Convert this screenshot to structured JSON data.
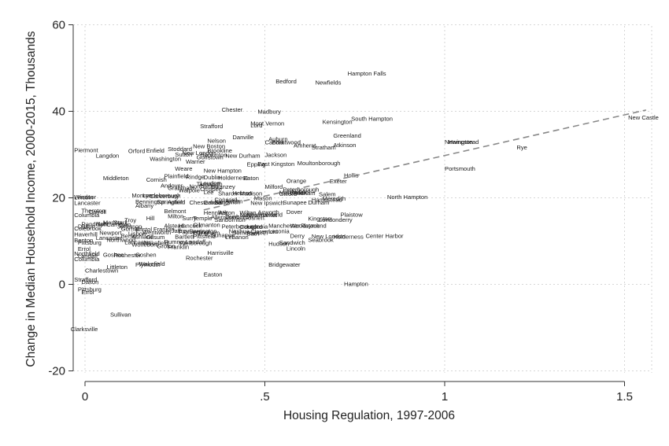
{
  "chart_data": {
    "type": "scatter",
    "title": "",
    "xlabel": "Housing Regulation, 1997-2006",
    "ylabel": "Change in Median Household Income, 2000-2015, Thousands",
    "xlim": [
      -0.03,
      1.58
    ],
    "ylim": [
      -21,
      62
    ],
    "xticks": [
      {
        "v": 0,
        "label": "0"
      },
      {
        "v": 0.5,
        "label": ".5"
      },
      {
        "v": 1,
        "label": "1"
      },
      {
        "v": 1.5,
        "label": "1.5"
      }
    ],
    "yticks": [
      {
        "v": -20,
        "label": "-20"
      },
      {
        "v": 0,
        "label": "0"
      },
      {
        "v": 20,
        "label": "20"
      },
      {
        "v": 40,
        "label": "40"
      },
      {
        "v": 60,
        "label": "60"
      }
    ],
    "grid": true,
    "marker": "town-name-label",
    "fit_line": {
      "style": "dashed",
      "color": "#888888",
      "x": [
        0.33,
        1.56
      ],
      "y": [
        17.2,
        40.3
      ]
    },
    "points": [
      {
        "x": 0.73,
        "y": 48.8,
        "label": "Hampton Falls"
      },
      {
        "x": 0.53,
        "y": 47.0,
        "label": "Bedford"
      },
      {
        "x": 0.64,
        "y": 46.7,
        "label": "Newfields"
      },
      {
        "x": 0.48,
        "y": 40.0,
        "label": "Madbury"
      },
      {
        "x": 0.38,
        "y": 40.5,
        "label": "Chester"
      },
      {
        "x": 1.51,
        "y": 38.6,
        "label": "New Castle"
      },
      {
        "x": 0.74,
        "y": 38.4,
        "label": "South Hampton"
      },
      {
        "x": 0.66,
        "y": 37.6,
        "label": "Kensington"
      },
      {
        "x": 0.46,
        "y": 37.3,
        "label": "Mont Vernon"
      },
      {
        "x": 0.32,
        "y": 36.6,
        "label": "Strafford"
      },
      {
        "x": 0.46,
        "y": 36.8,
        "label": "Lord"
      },
      {
        "x": 0.69,
        "y": 34.5,
        "label": "Greenland"
      },
      {
        "x": 0.41,
        "y": 34.1,
        "label": "Danville"
      },
      {
        "x": 0.51,
        "y": 33.6,
        "label": "Auburn"
      },
      {
        "x": 0.34,
        "y": 33.3,
        "label": "Nelson"
      },
      {
        "x": 0.5,
        "y": 32.9,
        "label": "Candia"
      },
      {
        "x": 0.52,
        "y": 32.9,
        "label": "Brentwood"
      },
      {
        "x": 1.0,
        "y": 33.0,
        "label": "Newington"
      },
      {
        "x": 1.01,
        "y": 33.0,
        "label": "Hampstead"
      },
      {
        "x": 0.69,
        "y": 32.3,
        "label": "Atkinson"
      },
      {
        "x": 0.58,
        "y": 32.2,
        "label": "Amherst"
      },
      {
        "x": 0.63,
        "y": 31.7,
        "label": "Stratham"
      },
      {
        "x": 1.2,
        "y": 31.7,
        "label": "Rye"
      },
      {
        "x": 0.3,
        "y": 32.0,
        "label": "New Boston"
      },
      {
        "x": 0.23,
        "y": 31.4,
        "label": "Stoddard"
      },
      {
        "x": 0.17,
        "y": 31.0,
        "label": "Enfield"
      },
      {
        "x": 0.12,
        "y": 30.9,
        "label": "Orford"
      },
      {
        "x": -0.03,
        "y": 31.1,
        "label": "Piermont"
      },
      {
        "x": 0.34,
        "y": 31.0,
        "label": "Brookline"
      },
      {
        "x": 0.27,
        "y": 30.5,
        "label": "New London"
      },
      {
        "x": 0.25,
        "y": 30.1,
        "label": "Sutton"
      },
      {
        "x": 0.32,
        "y": 30.0,
        "label": "Hopkinton"
      },
      {
        "x": 0.39,
        "y": 29.8,
        "label": "New Durham"
      },
      {
        "x": 0.31,
        "y": 29.5,
        "label": "Goffstown"
      },
      {
        "x": 0.5,
        "y": 30.0,
        "label": "Jackson"
      },
      {
        "x": 0.03,
        "y": 29.8,
        "label": "Langdon"
      },
      {
        "x": 0.18,
        "y": 29.1,
        "label": "Washington"
      },
      {
        "x": 0.28,
        "y": 28.5,
        "label": "Warner"
      },
      {
        "x": 0.59,
        "y": 28.1,
        "label": "Moultonborough"
      },
      {
        "x": 0.45,
        "y": 27.8,
        "label": "Epping"
      },
      {
        "x": 0.48,
        "y": 27.9,
        "label": "East Kingston"
      },
      {
        "x": 1.0,
        "y": 26.8,
        "label": "Portsmouth"
      },
      {
        "x": 0.25,
        "y": 26.8,
        "label": "Weare"
      },
      {
        "x": 0.33,
        "y": 26.4,
        "label": "New Hampton"
      },
      {
        "x": 0.72,
        "y": 25.3,
        "label": "Hollis"
      },
      {
        "x": 0.05,
        "y": 24.6,
        "label": "Middleton"
      },
      {
        "x": 0.22,
        "y": 25.1,
        "label": "Plainfield"
      },
      {
        "x": 0.28,
        "y": 24.9,
        "label": "Rindge"
      },
      {
        "x": 0.33,
        "y": 24.8,
        "label": "Dublin"
      },
      {
        "x": 0.37,
        "y": 24.7,
        "label": "Holderness"
      },
      {
        "x": 0.44,
        "y": 24.6,
        "label": "Eaton"
      },
      {
        "x": 0.17,
        "y": 24.3,
        "label": "Cornish"
      },
      {
        "x": 0.56,
        "y": 24.0,
        "label": "Orange"
      },
      {
        "x": 0.68,
        "y": 23.9,
        "label": "Exeter"
      },
      {
        "x": 0.21,
        "y": 22.9,
        "label": "Andover"
      },
      {
        "x": 0.31,
        "y": 23.3,
        "label": "Tamworth"
      },
      {
        "x": 0.32,
        "y": 23.5,
        "label": "Loudon"
      },
      {
        "x": 0.23,
        "y": 22.4,
        "label": "Grantham"
      },
      {
        "x": 0.29,
        "y": 22.7,
        "label": "Northwood"
      },
      {
        "x": 0.35,
        "y": 22.6,
        "label": "Swanzey"
      },
      {
        "x": 0.5,
        "y": 22.6,
        "label": "Milford"
      },
      {
        "x": 0.55,
        "y": 22.0,
        "label": "Peterborough"
      },
      {
        "x": 0.32,
        "y": 22.1,
        "label": "Ossipee"
      },
      {
        "x": 0.26,
        "y": 21.8,
        "label": "Walpole"
      },
      {
        "x": 0.33,
        "y": 21.4,
        "label": "Lee"
      },
      {
        "x": 0.37,
        "y": 21.1,
        "label": "Sharon"
      },
      {
        "x": 0.41,
        "y": 21.2,
        "label": "Hebron"
      },
      {
        "x": 0.43,
        "y": 21.1,
        "label": "Madison"
      },
      {
        "x": 0.57,
        "y": 21.5,
        "label": "Pelham"
      },
      {
        "x": 0.54,
        "y": 21.3,
        "label": "Merrimack"
      },
      {
        "x": 0.57,
        "y": 21.2,
        "label": "Windham"
      },
      {
        "x": 0.54,
        "y": 21.0,
        "label": "Gilford"
      },
      {
        "x": 0.65,
        "y": 20.9,
        "label": "Salem"
      },
      {
        "x": 0.84,
        "y": 20.3,
        "label": "North Hampton"
      },
      {
        "x": 0.13,
        "y": 20.6,
        "label": "Monroe"
      },
      {
        "x": 0.16,
        "y": 20.6,
        "label": "Lyndeborough"
      },
      {
        "x": 0.18,
        "y": 20.5,
        "label": "Canterbury"
      },
      {
        "x": -0.03,
        "y": 20.3,
        "label": "Windsor"
      },
      {
        "x": -0.03,
        "y": 20.2,
        "label": "Lincoln"
      },
      {
        "x": 0.47,
        "y": 20.0,
        "label": "Mason"
      },
      {
        "x": 0.63,
        "y": 19.6,
        "label": "Hampstead"
      },
      {
        "x": 0.66,
        "y": 19.9,
        "label": "Meredith"
      },
      {
        "x": 0.36,
        "y": 19.6,
        "label": "Concord"
      },
      {
        "x": 0.39,
        "y": 19.3,
        "label": "Antrim"
      },
      {
        "x": 0.14,
        "y": 19.2,
        "label": "Bennington"
      },
      {
        "x": 0.2,
        "y": 19.1,
        "label": "Springfield"
      },
      {
        "x": 0.23,
        "y": 19.1,
        "label": "Antrim"
      },
      {
        "x": 0.29,
        "y": 19.0,
        "label": "Chesterfield"
      },
      {
        "x": 0.33,
        "y": 19.0,
        "label": "Canaan"
      },
      {
        "x": 0.36,
        "y": 19.1,
        "label": "Sandwich"
      },
      {
        "x": 0.55,
        "y": 19.0,
        "label": "Sunapee"
      },
      {
        "x": 0.62,
        "y": 19.0,
        "label": "Durham"
      },
      {
        "x": 0.46,
        "y": 18.9,
        "label": "New Ipswich"
      },
      {
        "x": -0.03,
        "y": 18.9,
        "label": "Lancaster"
      },
      {
        "x": 0.14,
        "y": 18.3,
        "label": "Albany"
      },
      {
        "x": -0.01,
        "y": 17.1,
        "label": "Thornton"
      },
      {
        "x": 0.01,
        "y": 16.8,
        "label": "Carroll"
      },
      {
        "x": 0.22,
        "y": 17.0,
        "label": "Belmont"
      },
      {
        "x": 0.33,
        "y": 16.6,
        "label": "Henniker"
      },
      {
        "x": 0.37,
        "y": 16.6,
        "label": "Wilton"
      },
      {
        "x": 0.43,
        "y": 16.6,
        "label": "Wilton"
      },
      {
        "x": 0.48,
        "y": 16.7,
        "label": "Acworth"
      },
      {
        "x": 0.56,
        "y": 16.8,
        "label": "Dover"
      },
      {
        "x": 0.71,
        "y": 16.2,
        "label": "Plaistow"
      },
      {
        "x": 0.43,
        "y": 16.2,
        "label": "Northumberland"
      },
      {
        "x": 0.45,
        "y": 16.1,
        "label": "Newmarket"
      },
      {
        "x": -0.03,
        "y": 16.1,
        "label": "Columbia"
      },
      {
        "x": 0.23,
        "y": 15.8,
        "label": "Milton"
      },
      {
        "x": 0.27,
        "y": 15.4,
        "label": "Surry"
      },
      {
        "x": 0.3,
        "y": 15.4,
        "label": "Temple"
      },
      {
        "x": 0.35,
        "y": 15.6,
        "label": "Allenstown"
      },
      {
        "x": 0.39,
        "y": 15.7,
        "label": "Dunbarton"
      },
      {
        "x": 0.44,
        "y": 15.5,
        "label": "Goshen"
      },
      {
        "x": 0.62,
        "y": 15.3,
        "label": "Kingston"
      },
      {
        "x": 0.65,
        "y": 15.0,
        "label": "Londonderry"
      },
      {
        "x": 0.36,
        "y": 15.0,
        "label": "Sanbornton"
      },
      {
        "x": 0.17,
        "y": 15.4,
        "label": "Hill"
      },
      {
        "x": 0.11,
        "y": 14.9,
        "label": "Troy"
      },
      {
        "x": 0.05,
        "y": 14.4,
        "label": "Marlow"
      },
      {
        "x": 0.08,
        "y": 14.4,
        "label": "Stark"
      },
      {
        "x": 0.03,
        "y": 14.0,
        "label": "Bath"
      },
      {
        "x": 0.06,
        "y": 13.9,
        "label": "Campton"
      },
      {
        "x": -0.01,
        "y": 14.0,
        "label": "Randolph"
      },
      {
        "x": -0.02,
        "y": 13.5,
        "label": "Dalton"
      },
      {
        "x": 0.09,
        "y": 13.5,
        "label": "Jefferson"
      },
      {
        "x": 0.22,
        "y": 13.6,
        "label": "Alstead"
      },
      {
        "x": 0.26,
        "y": 13.6,
        "label": "Hancock"
      },
      {
        "x": 0.3,
        "y": 13.8,
        "label": "Gilmanton"
      },
      {
        "x": 0.38,
        "y": 13.5,
        "label": "Peterborough"
      },
      {
        "x": 0.43,
        "y": 13.4,
        "label": "Concord"
      },
      {
        "x": 0.45,
        "y": 13.5,
        "label": "Laconia"
      },
      {
        "x": 0.51,
        "y": 13.6,
        "label": "Manchester"
      },
      {
        "x": 0.57,
        "y": 13.6,
        "label": "Woodstock"
      },
      {
        "x": 0.6,
        "y": 13.6,
        "label": "Raymond"
      },
      {
        "x": -0.03,
        "y": 13.0,
        "label": "Colebrook"
      },
      {
        "x": 0.1,
        "y": 12.9,
        "label": "Gorham"
      },
      {
        "x": 0.14,
        "y": 12.8,
        "label": "Bristol"
      },
      {
        "x": 0.19,
        "y": 12.8,
        "label": "Franklin"
      },
      {
        "x": 0.24,
        "y": 12.5,
        "label": "Jaffrey"
      },
      {
        "x": 0.29,
        "y": 12.4,
        "label": "Barrington"
      },
      {
        "x": 0.4,
        "y": 12.4,
        "label": "Nashua"
      },
      {
        "x": 0.46,
        "y": 12.3,
        "label": "Claremont"
      },
      {
        "x": 0.51,
        "y": 12.4,
        "label": "Laconia"
      },
      {
        "x": 0.04,
        "y": 12.0,
        "label": "Newport"
      },
      {
        "x": 0.12,
        "y": 11.8,
        "label": "Lisbon"
      },
      {
        "x": 0.16,
        "y": 12.1,
        "label": "Wentworth"
      },
      {
        "x": 0.26,
        "y": 12.2,
        "label": "Farmington"
      },
      {
        "x": 0.3,
        "y": 12.0,
        "label": "Effingham"
      },
      {
        "x": 0.35,
        "y": 11.5,
        "label": "Sunapee"
      },
      {
        "x": 0.41,
        "y": 12.0,
        "label": "Somersworth"
      },
      {
        "x": 0.45,
        "y": 11.8,
        "label": "Bath"
      },
      {
        "x": -0.03,
        "y": 11.6,
        "label": "Haverhill"
      },
      {
        "x": 0.1,
        "y": 11.3,
        "label": "Berlin"
      },
      {
        "x": 0.13,
        "y": 11.1,
        "label": "Ashland"
      },
      {
        "x": 0.17,
        "y": 11.0,
        "label": "Gilsum"
      },
      {
        "x": 0.25,
        "y": 11.1,
        "label": "Bartlett"
      },
      {
        "x": 0.3,
        "y": 11.2,
        "label": "Pittsfield"
      },
      {
        "x": 0.39,
        "y": 11.0,
        "label": "Lebanon"
      },
      {
        "x": 0.57,
        "y": 11.3,
        "label": "Derry"
      },
      {
        "x": 0.63,
        "y": 11.2,
        "label": "New London"
      },
      {
        "x": 0.69,
        "y": 11.1,
        "label": "Holderness"
      },
      {
        "x": 0.78,
        "y": 11.3,
        "label": "Center Harbor"
      },
      {
        "x": 0.62,
        "y": 10.4,
        "label": "Seabrook"
      },
      {
        "x": 0.03,
        "y": 10.8,
        "label": "Lancaster"
      },
      {
        "x": 0.06,
        "y": 10.4,
        "label": "Northwood"
      },
      {
        "x": -0.03,
        "y": 10.3,
        "label": "Benton"
      },
      {
        "x": 0.11,
        "y": 9.8,
        "label": "Lancaster"
      },
      {
        "x": 0.16,
        "y": 9.6,
        "label": "Wakefield"
      },
      {
        "x": 0.22,
        "y": 9.9,
        "label": "Rumney"
      },
      {
        "x": 0.28,
        "y": 9.9,
        "label": "Landaff"
      },
      {
        "x": 0.26,
        "y": 9.6,
        "label": "Marlborough"
      },
      {
        "x": 0.51,
        "y": 9.5,
        "label": "Hudson"
      },
      {
        "x": 0.54,
        "y": 9.7,
        "label": "Sandwich"
      },
      {
        "x": 0.56,
        "y": 8.4,
        "label": "Lincoln"
      },
      {
        "x": -0.02,
        "y": 9.7,
        "label": "Pittsburg"
      },
      {
        "x": 0.13,
        "y": 9.3,
        "label": "Wolfeboro"
      },
      {
        "x": 0.2,
        "y": 8.9,
        "label": "Groton"
      },
      {
        "x": 0.23,
        "y": 8.7,
        "label": "Franklin"
      },
      {
        "x": -0.02,
        "y": 8.3,
        "label": "Errol"
      },
      {
        "x": 0.34,
        "y": 7.4,
        "label": "Harrisville"
      },
      {
        "x": -0.03,
        "y": 7.2,
        "label": "Northfield"
      },
      {
        "x": -0.02,
        "y": 6.6,
        "label": "Landaff"
      },
      {
        "x": 0.05,
        "y": 6.9,
        "label": "Goshen"
      },
      {
        "x": 0.08,
        "y": 6.8,
        "label": "Rochester"
      },
      {
        "x": 0.14,
        "y": 6.9,
        "label": "Goshen"
      },
      {
        "x": 0.28,
        "y": 6.2,
        "label": "Rochester"
      },
      {
        "x": -0.03,
        "y": 5.9,
        "label": "Columbia"
      },
      {
        "x": 0.15,
        "y": 4.8,
        "label": "Wakefield"
      },
      {
        "x": 0.14,
        "y": 4.6,
        "label": "Plymouth"
      },
      {
        "x": 0.06,
        "y": 4.1,
        "label": "Littleton"
      },
      {
        "x": 0.51,
        "y": 4.6,
        "label": "Bridgewater"
      },
      {
        "x": 0.0,
        "y": 3.3,
        "label": "Charlestown"
      },
      {
        "x": 0.33,
        "y": 2.4,
        "label": "Easton"
      },
      {
        "x": -0.03,
        "y": 1.2,
        "label": "Strafford"
      },
      {
        "x": -0.01,
        "y": 0.6,
        "label": "Dalton"
      },
      {
        "x": 0.72,
        "y": 0.2,
        "label": "Hampton"
      },
      {
        "x": -0.02,
        "y": -1.1,
        "label": "Pittsburg"
      },
      {
        "x": -0.01,
        "y": -1.7,
        "label": "Errol"
      },
      {
        "x": 0.07,
        "y": -6.9,
        "label": "Sullivan"
      },
      {
        "x": -0.04,
        "y": -10.3,
        "label": "Clarksville"
      }
    ]
  }
}
